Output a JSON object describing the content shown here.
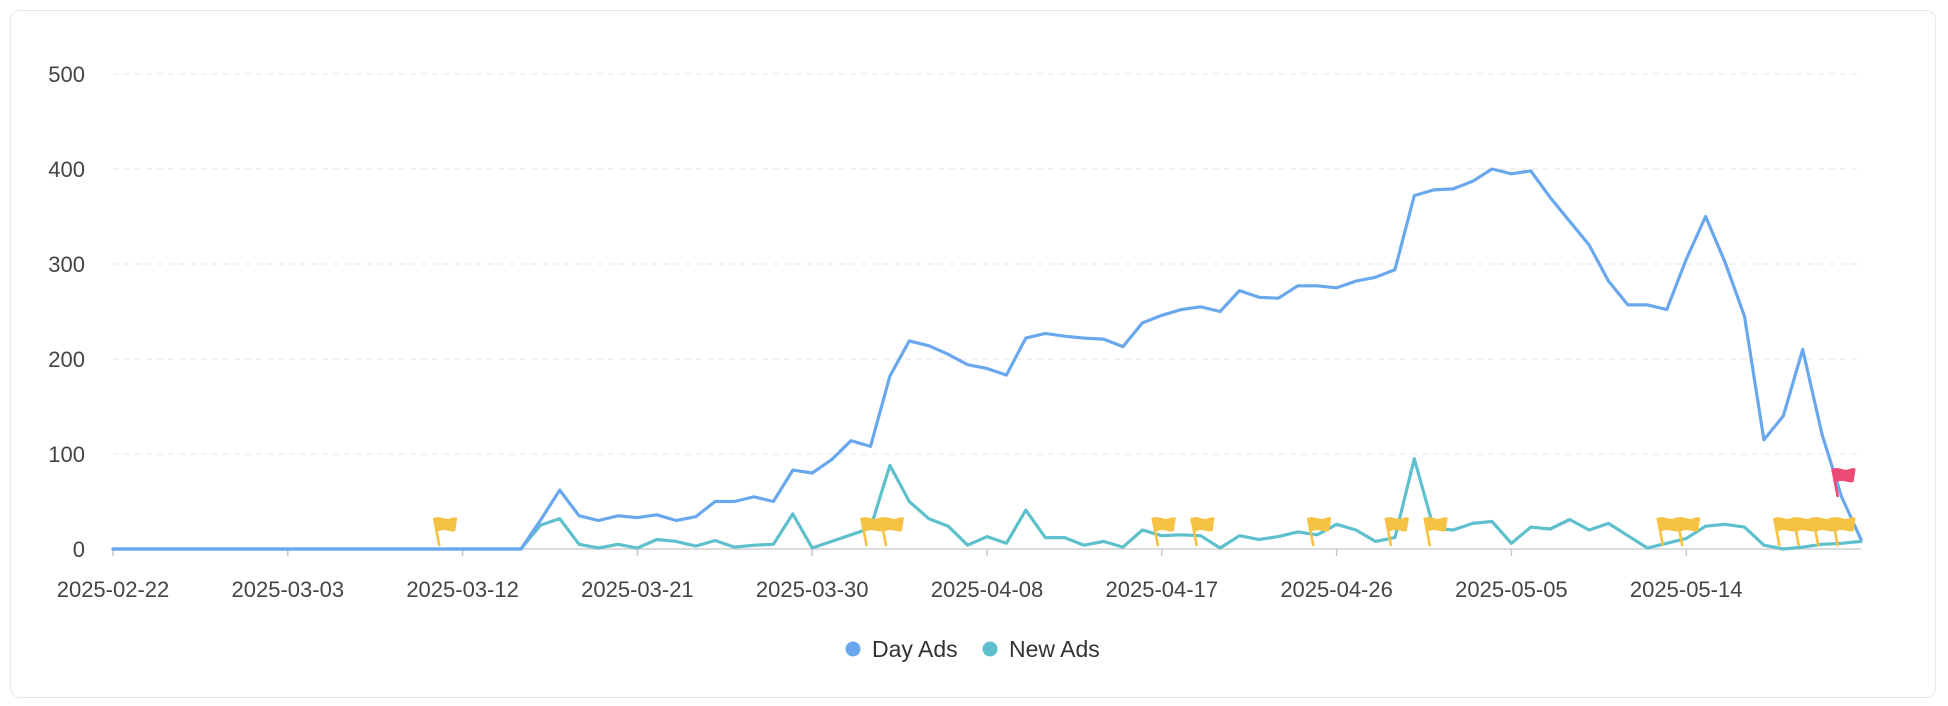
{
  "chart_data": {
    "type": "line",
    "title": "",
    "xlabel": "",
    "ylabel": "",
    "ylim": [
      0,
      500
    ],
    "yticks": [
      "0",
      "100",
      "200",
      "300",
      "400",
      "500"
    ],
    "x_tick_labels": [
      "2025-02-22",
      "2025-03-03",
      "2025-03-12",
      "2025-03-21",
      "2025-03-30",
      "2025-04-08",
      "2025-04-17",
      "2025-04-26",
      "2025-05-05",
      "2025-05-14"
    ],
    "x_start": "2025-02-22",
    "x_end": "2025-05-23",
    "grid": true,
    "legend_position": "bottom",
    "series": [
      {
        "name": "Day Ads",
        "color": "#6aa8ee",
        "points": [
          [
            "2025-02-22",
            0
          ],
          [
            "2025-03-15",
            0
          ],
          [
            "2025-03-16",
            30
          ],
          [
            "2025-03-17",
            62
          ],
          [
            "2025-03-18",
            35
          ],
          [
            "2025-03-19",
            30
          ],
          [
            "2025-03-20",
            35
          ],
          [
            "2025-03-21",
            33
          ],
          [
            "2025-03-22",
            36
          ],
          [
            "2025-03-23",
            30
          ],
          [
            "2025-03-24",
            34
          ],
          [
            "2025-03-25",
            50
          ],
          [
            "2025-03-26",
            50
          ],
          [
            "2025-03-27",
            55
          ],
          [
            "2025-03-28",
            50
          ],
          [
            "2025-03-29",
            83
          ],
          [
            "2025-03-30",
            80
          ],
          [
            "2025-03-31",
            94
          ],
          [
            "2025-04-01",
            114
          ],
          [
            "2025-04-02",
            108
          ],
          [
            "2025-04-03",
            182
          ],
          [
            "2025-04-04",
            219
          ],
          [
            "2025-04-05",
            214
          ],
          [
            "2025-04-06",
            205
          ],
          [
            "2025-04-07",
            194
          ],
          [
            "2025-04-08",
            190
          ],
          [
            "2025-04-09",
            183
          ],
          [
            "2025-04-10",
            222
          ],
          [
            "2025-04-11",
            227
          ],
          [
            "2025-04-12",
            224
          ],
          [
            "2025-04-13",
            222
          ],
          [
            "2025-04-14",
            221
          ],
          [
            "2025-04-15",
            213
          ],
          [
            "2025-04-16",
            238
          ],
          [
            "2025-04-17",
            246
          ],
          [
            "2025-04-18",
            252
          ],
          [
            "2025-04-19",
            255
          ],
          [
            "2025-04-20",
            250
          ],
          [
            "2025-04-21",
            272
          ],
          [
            "2025-04-22",
            265
          ],
          [
            "2025-04-23",
            264
          ],
          [
            "2025-04-24",
            277
          ],
          [
            "2025-04-25",
            277
          ],
          [
            "2025-04-26",
            275
          ],
          [
            "2025-04-27",
            282
          ],
          [
            "2025-04-28",
            286
          ],
          [
            "2025-04-29",
            294
          ],
          [
            "2025-04-30",
            372
          ],
          [
            "2025-05-01",
            378
          ],
          [
            "2025-05-02",
            379
          ],
          [
            "2025-05-03",
            387
          ],
          [
            "2025-05-04",
            400
          ],
          [
            "2025-05-05",
            395
          ],
          [
            "2025-05-06",
            398
          ],
          [
            "2025-05-07",
            370
          ],
          [
            "2025-05-08",
            345
          ],
          [
            "2025-05-09",
            320
          ],
          [
            "2025-05-10",
            282
          ],
          [
            "2025-05-11",
            257
          ],
          [
            "2025-05-12",
            257
          ],
          [
            "2025-05-13",
            252
          ],
          [
            "2025-05-14",
            305
          ],
          [
            "2025-05-15",
            350
          ],
          [
            "2025-05-16",
            302
          ],
          [
            "2025-05-17",
            245
          ],
          [
            "2025-05-18",
            115
          ],
          [
            "2025-05-19",
            140
          ],
          [
            "2025-05-20",
            210
          ],
          [
            "2025-05-21",
            120
          ],
          [
            "2025-05-22",
            55
          ],
          [
            "2025-05-23",
            10
          ]
        ]
      },
      {
        "name": "New Ads",
        "color": "#5ec0cc",
        "points": [
          [
            "2025-02-22",
            0
          ],
          [
            "2025-03-15",
            0
          ],
          [
            "2025-03-16",
            25
          ],
          [
            "2025-03-17",
            32
          ],
          [
            "2025-03-18",
            5
          ],
          [
            "2025-03-19",
            1
          ],
          [
            "2025-03-20",
            5
          ],
          [
            "2025-03-21",
            1
          ],
          [
            "2025-03-22",
            10
          ],
          [
            "2025-03-23",
            8
          ],
          [
            "2025-03-24",
            3
          ],
          [
            "2025-03-25",
            9
          ],
          [
            "2025-03-26",
            2
          ],
          [
            "2025-03-27",
            4
          ],
          [
            "2025-03-28",
            5
          ],
          [
            "2025-03-29",
            37
          ],
          [
            "2025-03-30",
            1
          ],
          [
            "2025-03-31",
            8
          ],
          [
            "2025-04-01",
            15
          ],
          [
            "2025-04-02",
            22
          ],
          [
            "2025-04-03",
            88
          ],
          [
            "2025-04-04",
            50
          ],
          [
            "2025-04-05",
            32
          ],
          [
            "2025-04-06",
            24
          ],
          [
            "2025-04-07",
            4
          ],
          [
            "2025-04-08",
            13
          ],
          [
            "2025-04-09",
            6
          ],
          [
            "2025-04-10",
            41
          ],
          [
            "2025-04-11",
            12
          ],
          [
            "2025-04-12",
            12
          ],
          [
            "2025-04-13",
            4
          ],
          [
            "2025-04-14",
            8
          ],
          [
            "2025-04-15",
            2
          ],
          [
            "2025-04-16",
            20
          ],
          [
            "2025-04-17",
            14
          ],
          [
            "2025-04-18",
            15
          ],
          [
            "2025-04-19",
            14
          ],
          [
            "2025-04-20",
            1
          ],
          [
            "2025-04-21",
            14
          ],
          [
            "2025-04-22",
            10
          ],
          [
            "2025-04-23",
            13
          ],
          [
            "2025-04-24",
            18
          ],
          [
            "2025-04-25",
            15
          ],
          [
            "2025-04-26",
            26
          ],
          [
            "2025-04-27",
            20
          ],
          [
            "2025-04-28",
            8
          ],
          [
            "2025-04-29",
            12
          ],
          [
            "2025-04-30",
            95
          ],
          [
            "2025-05-01",
            22
          ],
          [
            "2025-05-02",
            20
          ],
          [
            "2025-05-03",
            27
          ],
          [
            "2025-05-04",
            29
          ],
          [
            "2025-05-05",
            6
          ],
          [
            "2025-05-06",
            23
          ],
          [
            "2025-05-07",
            21
          ],
          [
            "2025-05-08",
            31
          ],
          [
            "2025-05-09",
            20
          ],
          [
            "2025-05-10",
            27
          ],
          [
            "2025-05-11",
            14
          ],
          [
            "2025-05-12",
            1
          ],
          [
            "2025-05-13",
            6
          ],
          [
            "2025-05-14",
            11
          ],
          [
            "2025-05-15",
            24
          ],
          [
            "2025-05-16",
            26
          ],
          [
            "2025-05-17",
            23
          ],
          [
            "2025-05-18",
            4
          ],
          [
            "2025-05-19",
            0
          ],
          [
            "2025-05-20",
            2
          ],
          [
            "2025-05-21",
            5
          ],
          [
            "2025-05-22",
            6
          ],
          [
            "2025-05-23",
            8
          ]
        ]
      }
    ],
    "annotations": [
      {
        "type": "flag",
        "color": "#f5c244",
        "x": "2025-03-11"
      },
      {
        "type": "flag",
        "color": "#f5c244",
        "x": "2025-04-02"
      },
      {
        "type": "flag",
        "color": "#f5c244",
        "x": "2025-04-03"
      },
      {
        "type": "flag",
        "color": "#f5c244",
        "x": "2025-04-17"
      },
      {
        "type": "flag",
        "color": "#f5c244",
        "x": "2025-04-19"
      },
      {
        "type": "flag",
        "color": "#f5c244",
        "x": "2025-04-25"
      },
      {
        "type": "flag",
        "color": "#f5c244",
        "x": "2025-04-29"
      },
      {
        "type": "flag",
        "color": "#f5c244",
        "x": "2025-05-01"
      },
      {
        "type": "flag",
        "color": "#f5c244",
        "x": "2025-05-13"
      },
      {
        "type": "flag",
        "color": "#f5c244",
        "x": "2025-05-14"
      },
      {
        "type": "flag",
        "color": "#f5c244",
        "x": "2025-05-19"
      },
      {
        "type": "flag",
        "color": "#f5c244",
        "x": "2025-05-20"
      },
      {
        "type": "flag",
        "color": "#f5c244",
        "x": "2025-05-21"
      },
      {
        "type": "flag",
        "color": "#f5c244",
        "x": "2025-05-22"
      },
      {
        "type": "flag",
        "color": "#ec4a75",
        "x": "2025-05-22",
        "y": 58
      }
    ]
  }
}
